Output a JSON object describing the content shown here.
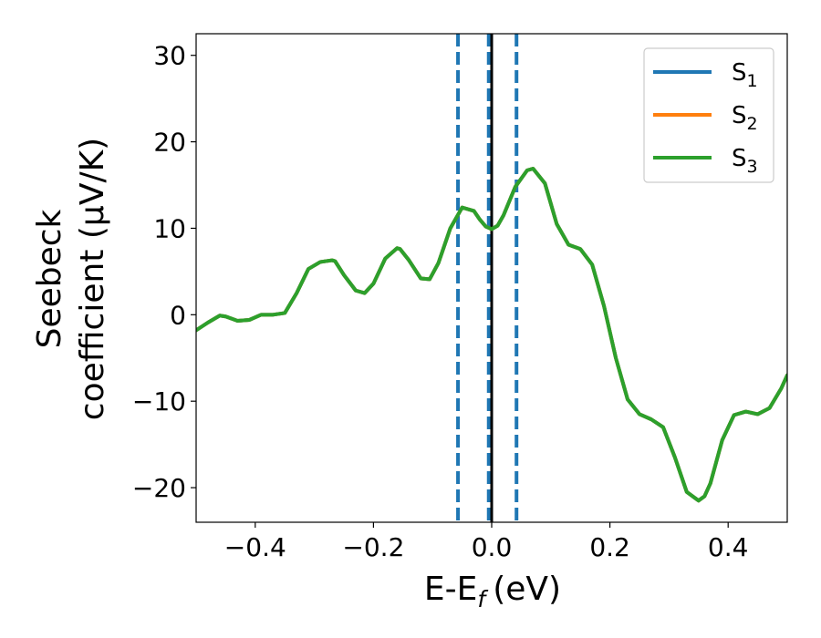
{
  "chart_data": {
    "type": "line",
    "xlabel": "E-E",
    "xlabel_sub": "f",
    "xlabel_unit": "(eV)",
    "ylabel_line1": "Seebeck",
    "ylabel_line2": "coefficient  (μV/K)",
    "xlim": [
      -0.5,
      0.5
    ],
    "ylim": [
      -24,
      32.5
    ],
    "xticks": [
      -0.4,
      -0.2,
      0.0,
      0.2,
      0.4
    ],
    "xtick_labels": [
      "−0.4",
      "−0.2",
      "0.0",
      "0.2",
      "0.4"
    ],
    "yticks": [
      -20,
      -10,
      0,
      10,
      20,
      30
    ],
    "ytick_labels": [
      "−20",
      "−10",
      "0",
      "10",
      "20",
      "30"
    ],
    "legend_position": "top-right",
    "grid": false,
    "vlines": [
      {
        "x": -0.057,
        "style": "dashed",
        "color": "#1f77b4"
      },
      {
        "x": -0.005,
        "style": "dashed",
        "color": "#1f77b4"
      },
      {
        "x": 0.042,
        "style": "dashed",
        "color": "#1f77b4"
      },
      {
        "x": 0.0,
        "style": "solid",
        "color": "#000000"
      }
    ],
    "series": [
      {
        "name": "S",
        "sub": "1",
        "color": "#1f77b4"
      },
      {
        "name": "S",
        "sub": "2",
        "color": "#ff7f0e"
      },
      {
        "name": "S",
        "sub": "3",
        "color": "#2ca02c"
      }
    ],
    "x": [
      -0.5,
      -0.48,
      -0.46,
      -0.45,
      -0.43,
      -0.41,
      -0.39,
      -0.37,
      -0.35,
      -0.33,
      -0.31,
      -0.29,
      -0.27,
      -0.265,
      -0.25,
      -0.23,
      -0.215,
      -0.2,
      -0.18,
      -0.16,
      -0.155,
      -0.14,
      -0.12,
      -0.105,
      -0.09,
      -0.07,
      -0.05,
      -0.03,
      -0.02,
      -0.01,
      0.0,
      0.01,
      0.02,
      0.04,
      0.06,
      0.07,
      0.09,
      0.11,
      0.13,
      0.15,
      0.17,
      0.19,
      0.21,
      0.23,
      0.25,
      0.27,
      0.29,
      0.31,
      0.33,
      0.35,
      0.36,
      0.37,
      0.39,
      0.41,
      0.43,
      0.45,
      0.47,
      0.49,
      0.5
    ],
    "y": [
      -1.8,
      -0.9,
      -0.1,
      -0.2,
      -0.7,
      -0.6,
      0.0,
      0.0,
      0.2,
      2.5,
      5.3,
      6.1,
      6.3,
      6.2,
      4.6,
      2.8,
      2.5,
      3.6,
      6.5,
      7.7,
      7.6,
      6.3,
      4.2,
      4.1,
      6.0,
      10.0,
      12.4,
      12.0,
      11.0,
      10.2,
      9.9,
      10.3,
      11.5,
      14.8,
      16.7,
      16.9,
      15.2,
      10.5,
      8.1,
      7.6,
      5.8,
      1.0,
      -5.0,
      -9.8,
      -11.5,
      -12.1,
      -13.0,
      -16.5,
      -20.5,
      -21.5,
      -21.0,
      -19.5,
      -14.5,
      -11.6,
      -11.2,
      -11.5,
      -10.8,
      -8.5,
      -7.0
    ]
  }
}
